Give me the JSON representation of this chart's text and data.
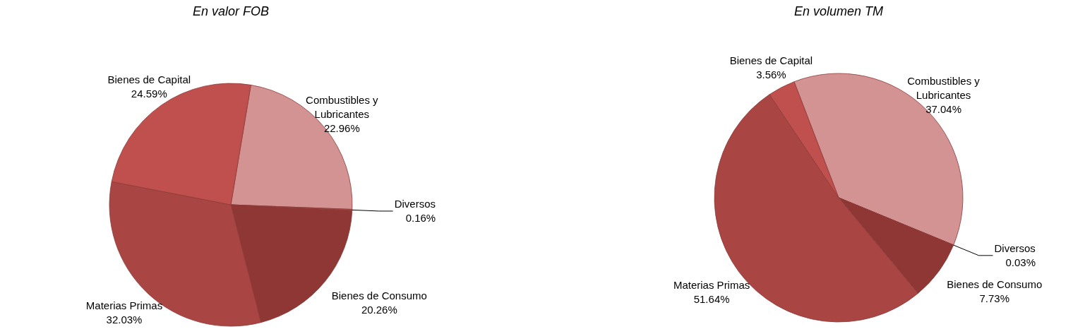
{
  "chart_data": [
    {
      "type": "pie",
      "title": "En valor FOB",
      "categories": [
        "Combustibles y Lubricantes",
        "Diversos",
        "Bienes de Consumo",
        "Materias Primas",
        "Bienes de Capital"
      ],
      "values": [
        22.96,
        0.16,
        20.26,
        32.03,
        24.59
      ],
      "value_labels": [
        "22.96%",
        "0.16%",
        "20.26%",
        "32.03%",
        "24.59%"
      ],
      "colors": [
        "#d39392",
        "#b24a47",
        "#8e3735",
        "#a94643",
        "#c0504d"
      ],
      "legend": false
    },
    {
      "type": "pie",
      "title": "En volumen TM",
      "categories": [
        "Combustibles y Lubricantes",
        "Diversos",
        "Bienes de Consumo",
        "Materias Primas",
        "Bienes de Capital"
      ],
      "values": [
        37.04,
        0.03,
        7.73,
        51.64,
        3.56
      ],
      "value_labels": [
        "37.04%",
        "0.03%",
        "7.73%",
        "51.64%",
        "3.56%"
      ],
      "colors": [
        "#d39392",
        "#b24a47",
        "#8e3735",
        "#a94643",
        "#c0504d"
      ],
      "legend": false
    }
  ]
}
